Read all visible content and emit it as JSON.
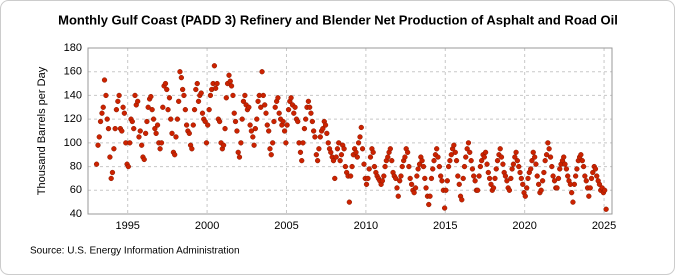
{
  "chart_data": {
    "type": "scatter",
    "title": "Monthly Gulf Coast (PADD 3) Refinery and Blender Net Production of Asphalt and Road Oil",
    "y_label": "Thousand Barrels per Day",
    "source": "Source: U.S. Energy Information Administration",
    "xlim": [
      1992.5,
      2025.5
    ],
    "xticks": [
      1995,
      2000,
      2005,
      2010,
      2015,
      2020,
      2025
    ],
    "ylim": [
      40,
      180
    ],
    "yticks": [
      40,
      60,
      80,
      100,
      120,
      140,
      160,
      180
    ],
    "grid": true,
    "x": [
      1993.04,
      1993.13,
      1993.21,
      1993.29,
      1993.38,
      1993.46,
      1993.54,
      1993.63,
      1993.71,
      1993.79,
      1993.88,
      1993.96,
      1994.04,
      1994.13,
      1994.21,
      1994.29,
      1994.38,
      1994.46,
      1994.54,
      1994.63,
      1994.71,
      1994.79,
      1994.88,
      1994.96,
      1995.04,
      1995.13,
      1995.21,
      1995.29,
      1995.38,
      1995.46,
      1995.54,
      1995.63,
      1995.71,
      1995.79,
      1995.88,
      1995.96,
      1996.04,
      1996.13,
      1996.21,
      1996.29,
      1996.38,
      1996.46,
      1996.54,
      1996.63,
      1996.71,
      1996.79,
      1996.88,
      1996.96,
      1997.04,
      1997.13,
      1997.21,
      1997.29,
      1997.38,
      1997.46,
      1997.54,
      1997.63,
      1997.71,
      1997.79,
      1997.88,
      1997.96,
      1998.04,
      1998.13,
      1998.21,
      1998.29,
      1998.38,
      1998.46,
      1998.54,
      1998.63,
      1998.71,
      1998.79,
      1998.88,
      1998.96,
      1999.04,
      1999.13,
      1999.21,
      1999.29,
      1999.38,
      1999.46,
      1999.54,
      1999.63,
      1999.71,
      1999.79,
      1999.88,
      1999.96,
      2000.04,
      2000.13,
      2000.21,
      2000.29,
      2000.38,
      2000.46,
      2000.54,
      2000.63,
      2000.71,
      2000.79,
      2000.88,
      2000.96,
      2001.04,
      2001.13,
      2001.21,
      2001.29,
      2001.38,
      2001.46,
      2001.54,
      2001.63,
      2001.71,
      2001.79,
      2001.88,
      2001.96,
      2002.04,
      2002.13,
      2002.21,
      2002.29,
      2002.38,
      2002.46,
      2002.54,
      2002.63,
      2002.71,
      2002.79,
      2002.88,
      2002.96,
      2003.04,
      2003.13,
      2003.21,
      2003.29,
      2003.38,
      2003.46,
      2003.54,
      2003.63,
      2003.71,
      2003.79,
      2003.88,
      2003.96,
      2004.04,
      2004.13,
      2004.21,
      2004.29,
      2004.38,
      2004.46,
      2004.54,
      2004.63,
      2004.71,
      2004.79,
      2004.88,
      2004.96,
      2005.04,
      2005.13,
      2005.21,
      2005.29,
      2005.38,
      2005.46,
      2005.54,
      2005.63,
      2005.71,
      2005.79,
      2005.88,
      2005.96,
      2006.04,
      2006.13,
      2006.21,
      2006.29,
      2006.38,
      2006.46,
      2006.54,
      2006.63,
      2006.71,
      2006.79,
      2006.88,
      2006.96,
      2007.04,
      2007.13,
      2007.21,
      2007.29,
      2007.38,
      2007.46,
      2007.54,
      2007.63,
      2007.71,
      2007.79,
      2007.88,
      2007.96,
      2008.04,
      2008.13,
      2008.21,
      2008.29,
      2008.38,
      2008.46,
      2008.54,
      2008.63,
      2008.71,
      2008.79,
      2008.88,
      2008.96,
      2009.04,
      2009.13,
      2009.21,
      2009.29,
      2009.38,
      2009.46,
      2009.54,
      2009.63,
      2009.71,
      2009.79,
      2009.88,
      2009.96,
      2010.04,
      2010.13,
      2010.21,
      2010.29,
      2010.38,
      2010.46,
      2010.54,
      2010.63,
      2010.71,
      2010.79,
      2010.88,
      2010.96,
      2011.04,
      2011.13,
      2011.21,
      2011.29,
      2011.38,
      2011.46,
      2011.54,
      2011.63,
      2011.71,
      2011.79,
      2011.88,
      2011.96,
      2012.04,
      2012.13,
      2012.21,
      2012.29,
      2012.38,
      2012.46,
      2012.54,
      2012.63,
      2012.71,
      2012.79,
      2012.88,
      2012.96,
      2013.04,
      2013.13,
      2013.21,
      2013.29,
      2013.38,
      2013.46,
      2013.54,
      2013.63,
      2013.71,
      2013.79,
      2013.88,
      2013.96,
      2014.04,
      2014.13,
      2014.21,
      2014.29,
      2014.38,
      2014.46,
      2014.54,
      2014.63,
      2014.71,
      2014.79,
      2014.88,
      2014.96,
      2015.04,
      2015.13,
      2015.21,
      2015.29,
      2015.38,
      2015.46,
      2015.54,
      2015.63,
      2015.71,
      2015.79,
      2015.88,
      2015.96,
      2016.04,
      2016.13,
      2016.21,
      2016.29,
      2016.38,
      2016.46,
      2016.54,
      2016.63,
      2016.71,
      2016.79,
      2016.88,
      2016.96,
      2017.04,
      2017.13,
      2017.21,
      2017.29,
      2017.38,
      2017.46,
      2017.54,
      2017.63,
      2017.71,
      2017.79,
      2017.88,
      2017.96,
      2018.04,
      2018.13,
      2018.21,
      2018.29,
      2018.38,
      2018.46,
      2018.54,
      2018.63,
      2018.71,
      2018.79,
      2018.88,
      2018.96,
      2019.04,
      2019.13,
      2019.21,
      2019.29,
      2019.38,
      2019.46,
      2019.54,
      2019.63,
      2019.71,
      2019.79,
      2019.88,
      2019.96,
      2020.04,
      2020.13,
      2020.21,
      2020.29,
      2020.38,
      2020.46,
      2020.54,
      2020.63,
      2020.71,
      2020.79,
      2020.88,
      2020.96,
      2021.04,
      2021.13,
      2021.21,
      2021.29,
      2021.38,
      2021.46,
      2021.54,
      2021.63,
      2021.71,
      2021.79,
      2021.88,
      2021.96,
      2022.04,
      2022.13,
      2022.21,
      2022.29,
      2022.38,
      2022.46,
      2022.54,
      2022.63,
      2022.71,
      2022.79,
      2022.88,
      2022.96,
      2023.04,
      2023.13,
      2023.21,
      2023.29,
      2023.38,
      2023.46,
      2023.54,
      2023.63,
      2023.71,
      2023.79,
      2023.88,
      2023.96,
      2024.04,
      2024.13,
      2024.21,
      2024.29,
      2024.38,
      2024.46,
      2024.54,
      2024.63,
      2024.71,
      2024.79,
      2024.88,
      2024.96,
      2025.04,
      2025.13
    ],
    "series": [
      {
        "color": "#cc2200",
        "values": [
          82,
          98,
          105,
          118,
          125,
          130,
          153,
          140,
          120,
          112,
          88,
          70,
          75,
          95,
          112,
          128,
          135,
          140,
          112,
          110,
          130,
          125,
          100,
          82,
          80,
          100,
          120,
          118,
          112,
          140,
          132,
          135,
          105,
          110,
          98,
          88,
          86,
          108,
          118,
          130,
          137,
          139,
          128,
          120,
          112,
          108,
          115,
          100,
          95,
          100,
          130,
          148,
          150,
          145,
          128,
          138,
          120,
          108,
          92,
          90,
          105,
          120,
          135,
          160,
          155,
          145,
          140,
          128,
          115,
          110,
          108,
          98,
          95,
          115,
          128,
          145,
          150,
          135,
          140,
          142,
          125,
          120,
          118,
          100,
          115,
          128,
          140,
          145,
          150,
          165,
          146,
          150,
          120,
          118,
          100,
          95,
          98,
          112,
          138,
          150,
          157,
          152,
          148,
          140,
          125,
          118,
          110,
          92,
          88,
          100,
          120,
          135,
          140,
          132,
          128,
          130,
          115,
          110,
          105,
          98,
          112,
          120,
          135,
          140,
          130,
          160,
          140,
          132,
          125,
          115,
          110,
          95,
          90,
          100,
          118,
          130,
          135,
          138,
          125,
          120,
          115,
          118,
          110,
          100,
          115,
          128,
          135,
          138,
          132,
          125,
          130,
          120,
          118,
          100,
          92,
          85,
          100,
          112,
          120,
          130,
          135,
          130,
          125,
          118,
          110,
          105,
          90,
          85,
          95,
          105,
          110,
          112,
          118,
          115,
          108,
          100,
          95,
          92,
          88,
          85,
          70,
          88,
          95,
          100,
          85,
          90,
          98,
          95,
          80,
          75,
          72,
          50,
          72,
          80,
          90,
          95,
          92,
          88,
          100,
          105,
          113,
          95,
          82,
          70,
          65,
          70,
          78,
          88,
          95,
          92,
          80,
          75,
          72,
          70,
          68,
          65,
          68,
          72,
          80,
          85,
          88,
          92,
          95,
          85,
          75,
          72,
          70,
          62,
          55,
          68,
          72,
          80,
          85,
          88,
          95,
          92,
          80,
          70,
          65,
          60,
          58,
          62,
          72,
          78,
          82,
          88,
          85,
          80,
          70,
          62,
          55,
          48,
          55,
          70,
          78,
          85,
          90,
          95,
          88,
          80,
          72,
          68,
          60,
          45,
          60,
          68,
          80,
          85,
          90,
          95,
          98,
          92,
          85,
          72,
          65,
          55,
          52,
          70,
          80,
          88,
          95,
          100,
          92,
          85,
          78,
          72,
          68,
          60,
          60,
          72,
          80,
          85,
          90,
          88,
          92,
          82,
          75,
          70,
          65,
          60,
          62,
          70,
          78,
          85,
          90,
          95,
          88,
          82,
          75,
          72,
          68,
          62,
          60,
          70,
          78,
          82,
          88,
          92,
          85,
          80,
          75,
          70,
          65,
          58,
          55,
          62,
          70,
          75,
          78,
          85,
          92,
          88,
          82,
          72,
          65,
          58,
          60,
          68,
          75,
          85,
          90,
          100,
          95,
          88,
          80,
          72,
          68,
          62,
          62,
          70,
          78,
          82,
          85,
          88,
          82,
          78,
          72,
          68,
          65,
          58,
          50,
          65,
          72,
          78,
          85,
          88,
          90,
          85,
          80,
          72,
          68,
          62,
          55,
          62,
          70,
          75,
          80,
          78,
          72,
          68,
          65,
          60,
          62,
          58,
          60,
          44
        ]
      }
    ]
  }
}
